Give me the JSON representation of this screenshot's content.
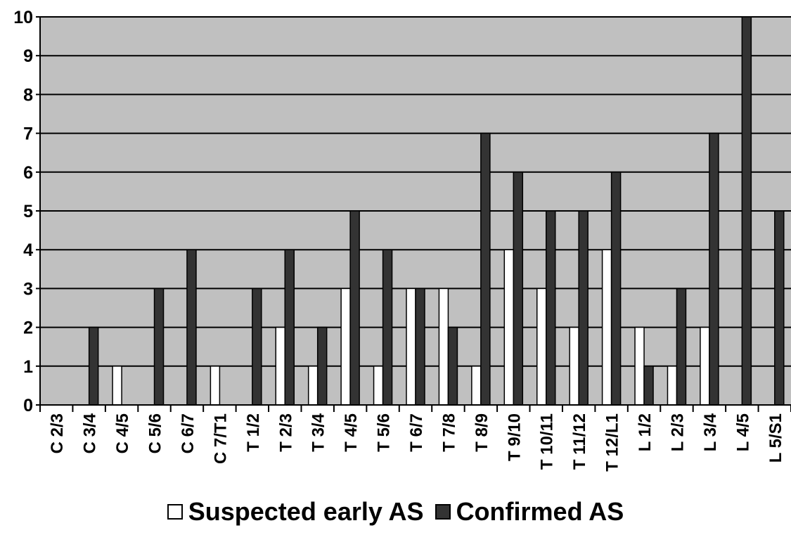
{
  "chart_data": {
    "type": "bar",
    "categories": [
      "C 2/3",
      "C 3/4",
      "C 4/5",
      "C 5/6",
      "C 6/7",
      "C 7/T1",
      "T 1/2",
      "T 2/3",
      "T 3/4",
      "T 4/5",
      "T 5/6",
      "T 6/7",
      "T 7/8",
      "T 8/9",
      "T 9/10",
      "T 10/11",
      "T 11/12",
      "T 12/L1",
      "L 1/2",
      "L 2/3",
      "L 3/4",
      "L 4/5",
      "L 5/S1"
    ],
    "series": [
      {
        "name": "Suspected early AS",
        "color": "#ffffff",
        "values": [
          0,
          0,
          1,
          0,
          0,
          1,
          0,
          2,
          1,
          3,
          1,
          3,
          3,
          1,
          4,
          3,
          2,
          4,
          2,
          1,
          2,
          0,
          0
        ]
      },
      {
        "name": "Confirmed AS",
        "color": "#333333",
        "values": [
          0,
          2,
          0,
          3,
          4,
          0,
          3,
          4,
          2,
          5,
          4,
          3,
          2,
          7,
          6,
          5,
          5,
          6,
          1,
          3,
          7,
          10,
          5
        ]
      }
    ],
    "yticks": [
      "0",
      "1",
      "2",
      "3",
      "4",
      "5",
      "6",
      "7",
      "8",
      "9",
      "10"
    ],
    "ylim": [
      0,
      10
    ],
    "grid": true,
    "plot_background": "#c0c0c0",
    "legend_position": "bottom"
  }
}
